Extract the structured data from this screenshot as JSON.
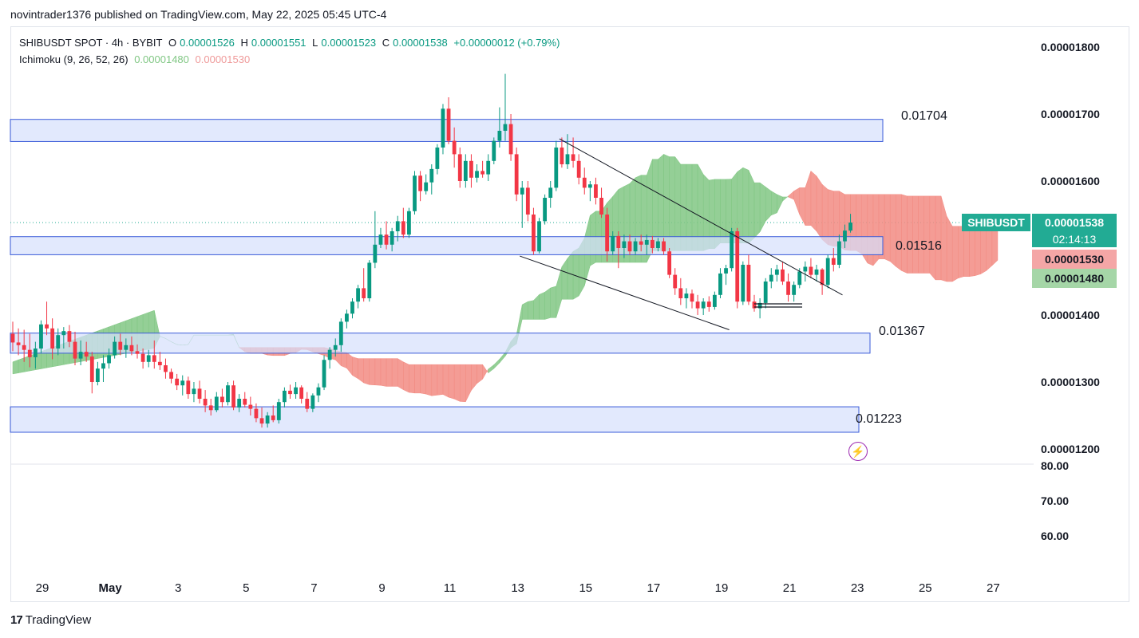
{
  "header": {
    "published_line": "novintrader1376 published on TradingView.com, May 22, 2025 05:45 UTC-4"
  },
  "legend": {
    "symbol_line": "SHIBUSDT SPOT · 4h · BYBIT",
    "o_label": "O",
    "o_value": "0.00001526",
    "h_label": "H",
    "h_value": "0.00001551",
    "l_label": "L",
    "l_value": "0.00001523",
    "c_label": "C",
    "c_value": "0.00001538",
    "change": "+0.00000012 (+0.79%)",
    "indicator": "Ichimoku (9, 26, 52, 26)",
    "ichimoku_a": "0.00001480",
    "ichimoku_b": "0.00001530"
  },
  "price_scale": {
    "labels": [
      "0.00001800",
      "0.00001700",
      "0.00001600",
      "0.00001400",
      "0.00001300",
      "0.00001200"
    ]
  },
  "sub_scale": {
    "labels": [
      "80.00",
      "70.00",
      "60.00"
    ]
  },
  "time_axis": {
    "labels": [
      "29",
      "May",
      "3",
      "5",
      "7",
      "9",
      "11",
      "13",
      "15",
      "17",
      "19",
      "21",
      "23",
      "25",
      "27"
    ]
  },
  "current": {
    "ticker": "SHIBUSDT",
    "price": "0.00001538",
    "countdown": "02:14:13",
    "ichimoku_b": "0.00001530",
    "ichimoku_a": "0.00001480"
  },
  "zone_labels": [
    "0.01704",
    "0.01516",
    "0.01367",
    "0.01223"
  ],
  "footer": {
    "brand": "TradingView",
    "logo_glyph": "17"
  },
  "colors": {
    "up": "#089981",
    "down": "#f23645",
    "cloud_bull": "#81c784",
    "cloud_bear": "#f28b82",
    "zone_fill": "#d6e0fc",
    "zone_border": "#3a5bd9"
  },
  "chart_data": {
    "type": "candlestick",
    "symbol": "SHIBUSDT",
    "timeframe": "4h",
    "ylim": [
      1.17e-05,
      1.88e-05
    ],
    "x_range_days": [
      "2025-04-28",
      "2025-05-27"
    ],
    "zones": [
      {
        "label": "0.01704",
        "top": 1.692e-05,
        "bottom": 1.659e-05,
        "end": "2025-05-23"
      },
      {
        "label": "0.01516",
        "top": 1.517e-05,
        "bottom": 1.49e-05,
        "end": "2025-05-23"
      },
      {
        "label": "0.01367",
        "top": 1.373e-05,
        "bottom": 1.343e-05,
        "end": "2025-05-23"
      },
      {
        "label": "0.01223",
        "top": 1.263e-05,
        "bottom": 1.225e-05,
        "end": "2025-05-23"
      }
    ],
    "ohlc": [
      [
        1.372e-05,
        1.39e-05,
        1.346e-05,
        1.359e-05
      ],
      [
        1.359e-05,
        1.38e-05,
        1.34e-05,
        1.355e-05
      ],
      [
        1.355e-05,
        1.378e-05,
        1.33e-05,
        1.348e-05
      ],
      [
        1.348e-05,
        1.372e-05,
        1.322e-05,
        1.337e-05
      ],
      [
        1.337e-05,
        1.36e-05,
        1.32e-05,
        1.35e-05
      ],
      [
        1.35e-05,
        1.392e-05,
        1.343e-05,
        1.386e-05
      ],
      [
        1.386e-05,
        1.42e-05,
        1.37e-05,
        1.38e-05
      ],
      [
        1.38e-05,
        1.395e-05,
        1.334e-05,
        1.35e-05
      ],
      [
        1.35e-05,
        1.38e-05,
        1.34e-05,
        1.37e-05
      ],
      [
        1.37e-05,
        1.382e-05,
        1.35e-05,
        1.376e-05
      ],
      [
        1.376e-05,
        1.385e-05,
        1.352e-05,
        1.36e-05
      ],
      [
        1.36e-05,
        1.375e-05,
        1.325e-05,
        1.335e-05
      ],
      [
        1.335e-05,
        1.362e-05,
        1.325e-05,
        1.345e-05
      ],
      [
        1.345e-05,
        1.36e-05,
        1.33e-05,
        1.338e-05
      ],
      [
        1.338e-05,
        1.345e-05,
        1.283e-05,
        1.3e-05
      ],
      [
        1.3e-05,
        1.33e-05,
        1.295e-05,
        1.32e-05
      ],
      [
        1.32e-05,
        1.34e-05,
        1.3e-05,
        1.328e-05
      ],
      [
        1.328e-05,
        1.35e-05,
        1.32e-05,
        1.34e-05
      ],
      [
        1.34e-05,
        1.368e-05,
        1.335e-05,
        1.36e-05
      ],
      [
        1.36e-05,
        1.372e-05,
        1.34e-05,
        1.348e-05
      ],
      [
        1.348e-05,
        1.365e-05,
        1.336e-05,
        1.355e-05
      ],
      [
        1.355e-05,
        1.368e-05,
        1.34e-05,
        1.346e-05
      ],
      [
        1.346e-05,
        1.356e-05,
        1.335e-05,
        1.342e-05
      ],
      [
        1.342e-05,
        1.35e-05,
        1.32e-05,
        1.33e-05
      ],
      [
        1.33e-05,
        1.348e-05,
        1.322e-05,
        1.34e-05
      ],
      [
        1.34e-05,
        1.362e-05,
        1.32e-05,
        1.33e-05
      ],
      [
        1.33e-05,
        1.345e-05,
        1.318e-05,
        1.325e-05
      ],
      [
        1.325e-05,
        1.335e-05,
        1.305e-05,
        1.315e-05
      ],
      [
        1.315e-05,
        1.32e-05,
        1.298e-05,
        1.305e-05
      ],
      [
        1.305e-05,
        1.312e-05,
        1.288e-05,
        1.295e-05
      ],
      [
        1.295e-05,
        1.31e-05,
        1.28e-05,
        1.302e-05
      ],
      [
        1.302e-05,
        1.308e-05,
        1.275e-05,
        1.282e-05
      ],
      [
        1.282e-05,
        1.3e-05,
        1.27e-05,
        1.29e-05
      ],
      [
        1.29e-05,
        1.302e-05,
        1.268e-05,
        1.275e-05
      ],
      [
        1.275e-05,
        1.288e-05,
        1.255e-05,
        1.265e-05
      ],
      [
        1.265e-05,
        1.275e-05,
        1.25e-05,
        1.258e-05
      ],
      [
        1.258e-05,
        1.285e-05,
        1.255e-05,
        1.278e-05
      ],
      [
        1.278e-05,
        1.29e-05,
        1.262e-05,
        1.27e-05
      ],
      [
        1.27e-05,
        1.3e-05,
        1.265e-05,
        1.295e-05
      ],
      [
        1.295e-05,
        1.302e-05,
        1.258e-05,
        1.262e-05
      ],
      [
        1.262e-05,
        1.282e-05,
        1.255e-05,
        1.275e-05
      ],
      [
        1.275e-05,
        1.285e-05,
        1.262e-05,
        1.266e-05
      ],
      [
        1.266e-05,
        1.278e-05,
        1.25e-05,
        1.26e-05
      ],
      [
        1.26e-05,
        1.268e-05,
        1.24e-05,
        1.246e-05
      ],
      [
        1.246e-05,
        1.262e-05,
        1.232e-05,
        1.238e-05
      ],
      [
        1.238e-05,
        1.255e-05,
        1.232e-05,
        1.25e-05
      ],
      [
        1.25e-05,
        1.265e-05,
        1.24e-05,
        1.243e-05
      ],
      [
        1.243e-05,
        1.275e-05,
        1.238e-05,
        1.27e-05
      ],
      [
        1.27e-05,
        1.292e-05,
        1.262e-05,
        1.287e-05
      ],
      [
        1.287e-05,
        1.296e-05,
        1.275e-05,
        1.282e-05
      ],
      [
        1.282e-05,
        1.3e-05,
        1.275e-05,
        1.292e-05
      ],
      [
        1.292e-05,
        1.295e-05,
        1.268e-05,
        1.275e-05
      ],
      [
        1.275e-05,
        1.285e-05,
        1.255e-05,
        1.26e-05
      ],
      [
        1.26e-05,
        1.283e-05,
        1.255e-05,
        1.28e-05
      ],
      [
        1.28e-05,
        1.298e-05,
        1.27e-05,
        1.292e-05
      ],
      [
        1.292e-05,
        1.34e-05,
        1.288e-05,
        1.333e-05
      ],
      [
        1.333e-05,
        1.352e-05,
        1.32e-05,
        1.348e-05
      ],
      [
        1.348e-05,
        1.365e-05,
        1.338e-05,
        1.355e-05
      ],
      [
        1.355e-05,
        1.395e-05,
        1.345e-05,
        1.39e-05
      ],
      [
        1.39e-05,
        1.408e-05,
        1.38e-05,
        1.402e-05
      ],
      [
        1.402e-05,
        1.425e-05,
        1.395e-05,
        1.42e-05
      ],
      [
        1.42e-05,
        1.445e-05,
        1.41e-05,
        1.44e-05
      ],
      [
        1.44e-05,
        1.47e-05,
        1.42e-05,
        1.425e-05
      ],
      [
        1.425e-05,
        1.482e-05,
        1.42e-05,
        1.478e-05
      ],
      [
        1.478e-05,
        1.555e-05,
        1.47e-05,
        1.505e-05
      ],
      [
        1.505e-05,
        1.53e-05,
        1.5e-05,
        1.52e-05
      ],
      [
        1.52e-05,
        1.54e-05,
        1.498e-05,
        1.505e-05
      ],
      [
        1.505e-05,
        1.53e-05,
        1.495e-05,
        1.525e-05
      ],
      [
        1.525e-05,
        1.548e-05,
        1.51e-05,
        1.54e-05
      ],
      [
        1.54e-05,
        1.56e-05,
        1.515e-05,
        1.52e-05
      ],
      [
        1.52e-05,
        1.56e-05,
        1.515e-05,
        1.555e-05
      ],
      [
        1.555e-05,
        1.615e-05,
        1.55e-05,
        1.608e-05
      ],
      [
        1.608e-05,
        1.615e-05,
        1.57e-05,
        1.585e-05
      ],
      [
        1.585e-05,
        1.61e-05,
        1.58e-05,
        1.598e-05
      ],
      [
        1.598e-05,
        1.625e-05,
        1.58e-05,
        1.618e-05
      ],
      [
        1.618e-05,
        1.655e-05,
        1.61e-05,
        1.65e-05
      ],
      [
        1.65e-05,
        1.715e-05,
        1.64e-05,
        1.708e-05
      ],
      [
        1.708e-05,
        1.725e-05,
        1.655e-05,
        1.66e-05
      ],
      [
        1.66e-05,
        1.68e-05,
        1.62e-05,
        1.64e-05
      ],
      [
        1.64e-05,
        1.65e-05,
        1.59e-05,
        1.6e-05
      ],
      [
        1.6e-05,
        1.64e-05,
        1.59e-05,
        1.63e-05
      ],
      [
        1.63e-05,
        1.64e-05,
        1.59e-05,
        1.605e-05
      ],
      [
        1.605e-05,
        1.625e-05,
        1.598e-05,
        1.615e-05
      ],
      [
        1.615e-05,
        1.63e-05,
        1.605e-05,
        1.61e-05
      ],
      [
        1.61e-05,
        1.64e-05,
        1.6e-05,
        1.63e-05
      ],
      [
        1.63e-05,
        1.665e-05,
        1.625e-05,
        1.66e-05
      ],
      [
        1.66e-05,
        1.71e-05,
        1.65e-05,
        1.675e-05
      ],
      [
        1.675e-05,
        1.76e-05,
        1.66e-05,
        1.685e-05
      ],
      [
        1.685e-05,
        1.7e-05,
        1.63e-05,
        1.64e-05
      ],
      [
        1.64e-05,
        1.65e-05,
        1.57e-05,
        1.58e-05
      ],
      [
        1.58e-05,
        1.6e-05,
        1.53e-05,
        1.59e-05
      ],
      [
        1.59e-05,
        1.6e-05,
        1.54e-05,
        1.55e-05
      ],
      [
        1.55e-05,
        1.56e-05,
        1.49e-05,
        1.495e-05
      ],
      [
        1.495e-05,
        1.545e-05,
        1.492e-05,
        1.54e-05
      ],
      [
        1.54e-05,
        1.58e-05,
        1.535e-05,
        1.575e-05
      ],
      [
        1.575e-05,
        1.6e-05,
        1.56e-05,
        1.59e-05
      ],
      [
        1.59e-05,
        1.66e-05,
        1.585e-05,
        1.65e-05
      ],
      [
        1.65e-05,
        1.665e-05,
        1.62e-05,
        1.625e-05
      ],
      [
        1.625e-05,
        1.67e-05,
        1.618e-05,
        1.64e-05
      ],
      [
        1.64e-05,
        1.665e-05,
        1.62e-05,
        1.63e-05
      ],
      [
        1.63e-05,
        1.64e-05,
        1.595e-05,
        1.605e-05
      ],
      [
        1.605e-05,
        1.62e-05,
        1.58e-05,
        1.59e-05
      ],
      [
        1.59e-05,
        1.6e-05,
        1.57e-05,
        1.595e-05
      ],
      [
        1.595e-05,
        1.605e-05,
        1.565e-05,
        1.575e-05
      ],
      [
        1.575e-05,
        1.59e-05,
        1.545e-05,
        1.55e-05
      ],
      [
        1.55e-05,
        1.56e-05,
        1.48e-05,
        1.495e-05
      ],
      [
        1.495e-05,
        1.525e-05,
        1.49e-05,
        1.518e-05
      ],
      [
        1.518e-05,
        1.525e-05,
        1.47e-05,
        1.5e-05
      ],
      [
        1.5e-05,
        1.52e-05,
        1.485e-05,
        1.51e-05
      ],
      [
        1.51e-05,
        1.52e-05,
        1.49e-05,
        1.495e-05
      ],
      [
        1.495e-05,
        1.515e-05,
        1.49e-05,
        1.51e-05
      ],
      [
        1.51e-05,
        1.52e-05,
        1.495e-05,
        1.505e-05
      ],
      [
        1.505e-05,
        1.52e-05,
        1.49e-05,
        1.512e-05
      ],
      [
        1.512e-05,
        1.518e-05,
        1.492e-05,
        1.5e-05
      ],
      [
        1.5e-05,
        1.515e-05,
        1.495e-05,
        1.51e-05
      ],
      [
        1.51e-05,
        1.515e-05,
        1.49e-05,
        1.495e-05
      ],
      [
        1.495e-05,
        1.5e-05,
        1.455e-05,
        1.46e-05
      ],
      [
        1.46e-05,
        1.47e-05,
        1.43e-05,
        1.44e-05
      ],
      [
        1.44e-05,
        1.455e-05,
        1.415e-05,
        1.425e-05
      ],
      [
        1.425e-05,
        1.44e-05,
        1.41e-05,
        1.432e-05
      ],
      [
        1.432e-05,
        1.438e-05,
        1.41e-05,
        1.42e-05
      ],
      [
        1.42e-05,
        1.43e-05,
        1.4e-05,
        1.41e-05
      ],
      [
        1.41e-05,
        1.425e-05,
        1.4e-05,
        1.42e-05
      ],
      [
        1.42e-05,
        1.428e-05,
        1.405e-05,
        1.412e-05
      ],
      [
        1.412e-05,
        1.435e-05,
        1.408e-05,
        1.43e-05
      ],
      [
        1.43e-05,
        1.47e-05,
        1.425e-05,
        1.462e-05
      ],
      [
        1.462e-05,
        1.475e-05,
        1.445e-05,
        1.47e-05
      ],
      [
        1.47e-05,
        1.53e-05,
        1.465e-05,
        1.525e-05
      ],
      [
        1.525e-05,
        1.53e-05,
        1.41e-05,
        1.42e-05
      ],
      [
        1.42e-05,
        1.48e-05,
        1.415e-05,
        1.475e-05
      ],
      [
        1.475e-05,
        1.49e-05,
        1.415e-05,
        1.42e-05
      ],
      [
        1.42e-05,
        1.43e-05,
        1.405e-05,
        1.41e-05
      ],
      [
        1.41e-05,
        1.425e-05,
        1.395e-05,
        1.418e-05
      ],
      [
        1.418e-05,
        1.455e-05,
        1.41e-05,
        1.45e-05
      ],
      [
        1.45e-05,
        1.47e-05,
        1.44e-05,
        1.46e-05
      ],
      [
        1.46e-05,
        1.475e-05,
        1.45e-05,
        1.468e-05
      ],
      [
        1.468e-05,
        1.48e-05,
        1.445e-05,
        1.45e-05
      ],
      [
        1.45e-05,
        1.462e-05,
        1.42e-05,
        1.43e-05
      ],
      [
        1.43e-05,
        1.45e-05,
        1.42e-05,
        1.445e-05
      ],
      [
        1.445e-05,
        1.47e-05,
        1.44e-05,
        1.465e-05
      ],
      [
        1.465e-05,
        1.48e-05,
        1.45e-05,
        1.472e-05
      ],
      [
        1.472e-05,
        1.485e-05,
        1.455e-05,
        1.46e-05
      ],
      [
        1.46e-05,
        1.475e-05,
        1.45e-05,
        1.468e-05
      ],
      [
        1.468e-05,
        1.47e-05,
        1.43e-05,
        1.445e-05
      ],
      [
        1.445e-05,
        1.49e-05,
        1.44e-05,
        1.485e-05
      ],
      [
        1.485e-05,
        1.5e-05,
        1.465e-05,
        1.475e-05
      ],
      [
        1.475e-05,
        1.52e-05,
        1.47e-05,
        1.51e-05
      ],
      [
        1.51e-05,
        1.535e-05,
        1.5e-05,
        1.526e-05
      ],
      [
        1.526e-05,
        1.551e-05,
        1.523e-05,
        1.538e-05
      ]
    ],
    "cloud_bull": "green when Span A above Span B",
    "cloud_bear": "red when Span B above Span A",
    "trendlines": [
      {
        "from": [
          "2025-05-14T04:00",
          1.663e-05
        ],
        "to": [
          "2025-05-22T12:00",
          1.43e-05
        ]
      },
      {
        "from": [
          "2025-05-13T00:00",
          1.488e-05
        ],
        "to": [
          "2025-05-19T04:00",
          1.378e-05
        ]
      }
    ],
    "last_price": 1.538e-05
  }
}
